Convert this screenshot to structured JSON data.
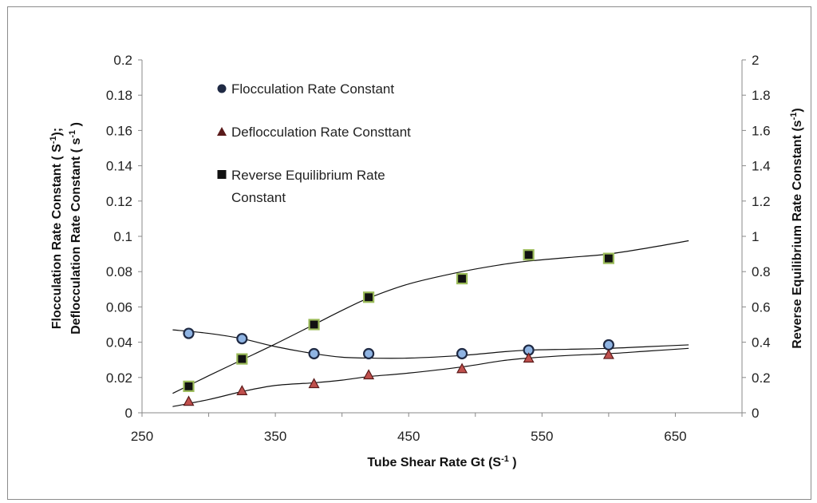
{
  "chart_data": {
    "type": "scatter",
    "title": "",
    "xlabel": "Tube Shear Rate Gt (S",
    "xlabel_sup": "-1",
    "xlabel_tail": " )",
    "ylabel_line1": "Flocculation Rate Constant ( S",
    "ylabel_line1_sup": "-1",
    "ylabel_line1_tail": ");",
    "ylabel_line2": "Deflocculation Rate Constant ( s",
    "ylabel_line2_sup": "-1",
    "ylabel_line2_tail": " )",
    "y2label": "Reverse Equilibrium Rate Constant (s",
    "y2label_sup": "-1",
    "y2label_tail": ")",
    "xlim": [
      250,
      700
    ],
    "ylim": [
      0,
      0.2
    ],
    "y2lim": [
      0,
      2
    ],
    "xticks": [
      "250",
      "350",
      "450",
      "550",
      "650"
    ],
    "xtick_values": [
      250,
      350,
      450,
      550,
      650
    ],
    "yticks": [
      "0",
      "0.02",
      "0.04",
      "0.06",
      "0.08",
      "0.1",
      "0.12",
      "0.14",
      "0.16",
      "0.18",
      "0.2"
    ],
    "ytick_values": [
      0,
      0.02,
      0.04,
      0.06,
      0.08,
      0.1,
      0.12,
      0.14,
      0.16,
      0.18,
      0.2
    ],
    "y2ticks": [
      "0",
      "0.2",
      "0.4",
      "0.6",
      "0.8",
      "1",
      "1.2",
      "1.4",
      "1.6",
      "1.8",
      "2"
    ],
    "y2tick_values": [
      0,
      0.2,
      0.4,
      0.6,
      0.8,
      1,
      1.2,
      1.4,
      1.6,
      1.8,
      2
    ],
    "grid": false,
    "legend_position": "top-left inside plot",
    "series": [
      {
        "name": "Flocculation Rate Constant",
        "axis": "left",
        "marker": "circle",
        "marker_color": "#8fb4e3",
        "marker_edge": "#1f2a44",
        "x": [
          285,
          325,
          379,
          420,
          490,
          540,
          600
        ],
        "y": [
          0.045,
          0.042,
          0.0335,
          0.0335,
          0.0335,
          0.0355,
          0.0385
        ],
        "trend_x": [
          273,
          300,
          325,
          350,
          379,
          400,
          420,
          450,
          490,
          520,
          540,
          570,
          600,
          630,
          660
        ],
        "trend_y": [
          0.047,
          0.045,
          0.042,
          0.0375,
          0.0335,
          0.0315,
          0.031,
          0.031,
          0.0325,
          0.0345,
          0.0355,
          0.036,
          0.0365,
          0.0375,
          0.0385
        ]
      },
      {
        "name": "Deflocculation Rate Consttant",
        "axis": "left",
        "marker": "triangle",
        "marker_color": "#c0504d",
        "marker_edge": "#5a1a1a",
        "x": [
          285,
          325,
          379,
          420,
          490,
          540,
          600
        ],
        "y": [
          0.0065,
          0.0125,
          0.0165,
          0.0215,
          0.025,
          0.031,
          0.033
        ],
        "trend_x": [
          273,
          300,
          325,
          350,
          379,
          400,
          420,
          450,
          490,
          520,
          540,
          570,
          600,
          630,
          660
        ],
        "trend_y": [
          0.0035,
          0.0075,
          0.012,
          0.0155,
          0.017,
          0.0185,
          0.0205,
          0.0225,
          0.026,
          0.0295,
          0.031,
          0.0325,
          0.0335,
          0.035,
          0.0365
        ]
      },
      {
        "name": "Reverse Equilibrium Rate Constant",
        "name_line1": "Reverse Equilibrium Rate",
        "name_line2": "Constant",
        "axis": "right",
        "marker": "square",
        "marker_color": "#9bbb59",
        "marker_edge": "#111111",
        "x": [
          285,
          325,
          379,
          420,
          490,
          540,
          600
        ],
        "y": [
          0.15,
          0.305,
          0.5,
          0.655,
          0.76,
          0.895,
          0.875
        ],
        "trend_x": [
          273,
          300,
          325,
          350,
          379,
          400,
          420,
          450,
          490,
          520,
          540,
          570,
          600,
          630,
          660
        ],
        "trend_y": [
          0.11,
          0.21,
          0.3,
          0.39,
          0.5,
          0.58,
          0.65,
          0.73,
          0.8,
          0.84,
          0.86,
          0.88,
          0.9,
          0.935,
          0.975
        ]
      }
    ]
  }
}
